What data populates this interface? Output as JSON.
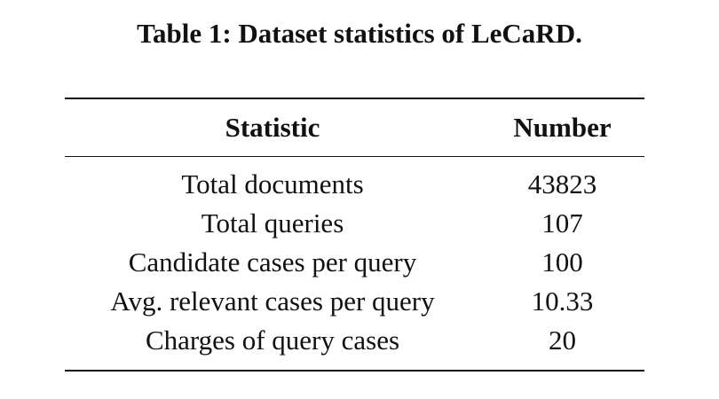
{
  "caption": "Table 1: Dataset statistics of LeCaRD.",
  "table": {
    "headers": [
      "Statistic",
      "Number"
    ],
    "rows": [
      [
        "Total documents",
        "43823"
      ],
      [
        "Total queries",
        "107"
      ],
      [
        "Candidate cases per query",
        "100"
      ],
      [
        "Avg. relevant cases per query",
        "10.33"
      ],
      [
        "Charges of query cases",
        "20"
      ]
    ]
  }
}
